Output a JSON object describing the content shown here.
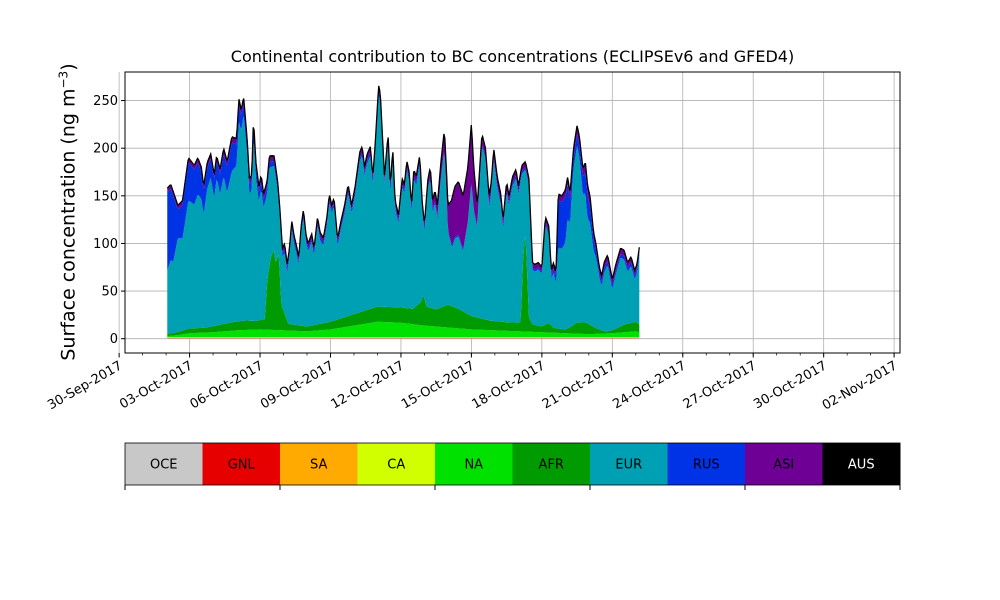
{
  "chart_data": {
    "type": "area",
    "title": "Continental contribution to BC concentrations (ECLIPSEv6 and GFED4)",
    "ylabel": "Surface concentration (ng m",
    "ylabel_exp": "−3",
    "ylabel_close": ")",
    "xlabel": "",
    "grid": true,
    "stacked": true,
    "start_date": "2017-10-01",
    "xlim": [
      "2017-09-30T06:00",
      "2017-11-02T06:00"
    ],
    "ylim": [
      -15,
      280
    ],
    "yticks": [
      0,
      50,
      100,
      150,
      200,
      250
    ],
    "xticks": [
      "2017-09-30",
      "2017-10-03",
      "2017-10-06",
      "2017-10-09",
      "2017-10-12",
      "2017-10-15",
      "2017-10-18",
      "2017-10-21",
      "2017-10-24",
      "2017-10-27",
      "2017-10-30",
      "2017-11-02"
    ],
    "xtick_labels": [
      "30-Sep-2017",
      "03-Oct-2017",
      "06-Oct-2017",
      "09-Oct-2017",
      "12-Oct-2017",
      "15-Oct-2017",
      "18-Oct-2017",
      "21-Oct-2017",
      "24-Oct-2017",
      "27-Oct-2017",
      "30-Oct-2017",
      "02-Nov-2017"
    ],
    "legend_placement": "colorbar below chart",
    "regions": [
      {
        "name": "OCE",
        "color": "#c8c8c8"
      },
      {
        "name": "GNL",
        "color": "#e60000"
      },
      {
        "name": "SA",
        "color": "#ffaa00"
      },
      {
        "name": "CA",
        "color": "#d2ff00"
      },
      {
        "name": "NA",
        "color": "#00e100"
      },
      {
        "name": "AFR",
        "color": "#009b00"
      },
      {
        "name": "EUR",
        "color": "#00a0b4"
      },
      {
        "name": "RUS",
        "color": "#0032e6"
      },
      {
        "name": "ASI",
        "color": "#6e0096"
      },
      {
        "name": "AUS",
        "color": "#000000"
      }
    ],
    "profiles": {
      "total": [
        [
          1.05,
          158
        ],
        [
          1.2,
          162
        ],
        [
          1.5,
          140
        ],
        [
          1.7,
          145
        ],
        [
          1.95,
          190
        ],
        [
          2.2,
          182
        ],
        [
          2.35,
          190
        ],
        [
          2.5,
          180
        ],
        [
          2.6,
          160
        ],
        [
          2.75,
          185
        ],
        [
          2.9,
          194
        ],
        [
          3.05,
          172
        ],
        [
          3.15,
          192
        ],
        [
          3.3,
          178
        ],
        [
          3.45,
          200
        ],
        [
          3.6,
          186
        ],
        [
          3.8,
          212
        ],
        [
          4.0,
          210
        ],
        [
          4.1,
          252
        ],
        [
          4.2,
          240
        ],
        [
          4.3,
          254
        ],
        [
          4.45,
          210
        ],
        [
          4.55,
          168
        ],
        [
          4.65,
          172
        ],
        [
          4.72,
          232
        ],
        [
          4.82,
          186
        ],
        [
          4.95,
          160
        ],
        [
          5.05,
          172
        ],
        [
          5.15,
          152
        ],
        [
          5.3,
          165
        ],
        [
          5.4,
          192
        ],
        [
          5.6,
          192
        ],
        [
          5.75,
          165
        ],
        [
          5.85,
          135
        ],
        [
          5.95,
          95
        ],
        [
          6.05,
          100
        ],
        [
          6.15,
          78
        ],
        [
          6.25,
          94
        ],
        [
          6.35,
          124
        ],
        [
          6.45,
          108
        ],
        [
          6.55,
          98
        ],
        [
          6.65,
          85
        ],
        [
          6.75,
          118
        ],
        [
          6.85,
          136
        ],
        [
          6.95,
          110
        ],
        [
          7.05,
          100
        ],
        [
          7.2,
          110
        ],
        [
          7.3,
          95
        ],
        [
          7.45,
          128
        ],
        [
          7.55,
          112
        ],
        [
          7.7,
          106
        ],
        [
          7.85,
          128
        ],
        [
          7.95,
          152
        ],
        [
          8.05,
          140
        ],
        [
          8.15,
          148
        ],
        [
          8.3,
          105
        ],
        [
          8.45,
          124
        ],
        [
          8.6,
          140
        ],
        [
          8.75,
          162
        ],
        [
          8.9,
          140
        ],
        [
          9.05,
          160
        ],
        [
          9.25,
          196
        ],
        [
          9.35,
          202
        ],
        [
          9.45,
          180
        ],
        [
          9.55,
          193
        ],
        [
          9.7,
          202
        ],
        [
          9.8,
          170
        ],
        [
          9.9,
          203
        ],
        [
          10.05,
          266
        ],
        [
          10.12,
          258
        ],
        [
          10.3,
          170
        ],
        [
          10.45,
          215
        ],
        [
          10.55,
          160
        ],
        [
          10.65,
          200
        ],
        [
          10.75,
          145
        ],
        [
          10.9,
          130
        ],
        [
          11.05,
          168
        ],
        [
          11.15,
          162
        ],
        [
          11.25,
          187
        ],
        [
          11.35,
          175
        ],
        [
          11.45,
          140
        ],
        [
          11.55,
          178
        ],
        [
          11.65,
          170
        ],
        [
          11.8,
          193
        ],
        [
          11.9,
          145
        ],
        [
          12.0,
          120
        ],
        [
          12.15,
          168
        ],
        [
          12.25,
          180
        ],
        [
          12.35,
          145
        ],
        [
          12.45,
          156
        ],
        [
          12.55,
          140
        ],
        [
          12.7,
          185
        ],
        [
          12.85,
          220
        ],
        [
          12.95,
          170
        ],
        [
          13.0,
          140
        ],
        [
          13.15,
          145
        ],
        [
          13.3,
          160
        ],
        [
          13.45,
          165
        ],
        [
          13.65,
          150
        ],
        [
          13.85,
          180
        ],
        [
          14.0,
          226
        ],
        [
          14.1,
          180
        ],
        [
          14.25,
          140
        ],
        [
          14.45,
          215
        ],
        [
          14.6,
          200
        ],
        [
          14.75,
          150
        ],
        [
          14.85,
          165
        ],
        [
          14.95,
          200
        ],
        [
          15.1,
          170
        ],
        [
          15.25,
          152
        ],
        [
          15.35,
          125
        ],
        [
          15.5,
          165
        ],
        [
          15.6,
          150
        ],
        [
          15.75,
          170
        ],
        [
          15.9,
          178
        ],
        [
          16.0,
          160
        ],
        [
          16.15,
          182
        ],
        [
          16.3,
          186
        ],
        [
          16.45,
          168
        ],
        [
          16.6,
          80
        ],
        [
          16.7,
          78
        ],
        [
          16.85,
          80
        ],
        [
          17.0,
          75
        ],
        [
          17.15,
          128
        ],
        [
          17.3,
          118
        ],
        [
          17.4,
          72
        ],
        [
          17.5,
          80
        ],
        [
          17.6,
          68
        ],
        [
          17.7,
          152
        ],
        [
          17.85,
          150
        ],
        [
          18.0,
          156
        ],
        [
          18.1,
          170
        ],
        [
          18.2,
          152
        ],
        [
          18.35,
          200
        ],
        [
          18.5,
          224
        ],
        [
          18.6,
          212
        ],
        [
          18.75,
          178
        ],
        [
          18.85,
          186
        ],
        [
          18.95,
          160
        ],
        [
          19.05,
          150
        ],
        [
          19.2,
          112
        ],
        [
          19.3,
          100
        ],
        [
          19.45,
          75
        ],
        [
          19.55,
          66
        ],
        [
          19.65,
          80
        ],
        [
          19.8,
          88
        ],
        [
          20.0,
          62
        ],
        [
          20.15,
          78
        ],
        [
          20.35,
          95
        ],
        [
          20.5,
          93
        ],
        [
          20.65,
          80
        ],
        [
          20.8,
          86
        ],
        [
          20.95,
          72
        ],
        [
          21.05,
          78
        ],
        [
          21.15,
          96
        ]
      ],
      "afr": [
        [
          1.05,
          2
        ],
        [
          1.4,
          3
        ],
        [
          2.0,
          5
        ],
        [
          2.6,
          5
        ],
        [
          3.2,
          7
        ],
        [
          3.9,
          9
        ],
        [
          4.4,
          10
        ],
        [
          4.8,
          9
        ],
        [
          5.05,
          10
        ],
        [
          5.2,
          10
        ],
        [
          5.3,
          50
        ],
        [
          5.45,
          75
        ],
        [
          5.6,
          85
        ],
        [
          5.65,
          70
        ],
        [
          5.8,
          80
        ],
        [
          5.9,
          28
        ],
        [
          6.2,
          7
        ],
        [
          7.0,
          5
        ],
        [
          8.0,
          8
        ],
        [
          9.0,
          12
        ],
        [
          10.0,
          16
        ],
        [
          11.0,
          16
        ],
        [
          11.5,
          16
        ],
        [
          11.85,
          24
        ],
        [
          11.95,
          32
        ],
        [
          12.1,
          20
        ],
        [
          12.5,
          18
        ],
        [
          13.0,
          24
        ],
        [
          13.5,
          20
        ],
        [
          14.0,
          14
        ],
        [
          14.8,
          10
        ],
        [
          15.5,
          9
        ],
        [
          16.0,
          9
        ],
        [
          16.1,
          10
        ],
        [
          16.2,
          75
        ],
        [
          16.3,
          105
        ],
        [
          16.45,
          15
        ],
        [
          16.6,
          8
        ],
        [
          17.0,
          6
        ],
        [
          17.3,
          10
        ],
        [
          17.5,
          5
        ],
        [
          18.0,
          4
        ],
        [
          18.3,
          8
        ],
        [
          18.5,
          12
        ],
        [
          18.9,
          12
        ],
        [
          19.3,
          6
        ],
        [
          19.7,
          2
        ],
        [
          20.0,
          3
        ],
        [
          20.5,
          8
        ],
        [
          21.0,
          10
        ],
        [
          21.15,
          8
        ]
      ],
      "na": [
        [
          1.05,
          1
        ],
        [
          1.5,
          2
        ],
        [
          2.0,
          4
        ],
        [
          3.0,
          5
        ],
        [
          4.0,
          7
        ],
        [
          5.0,
          8
        ],
        [
          6.0,
          7
        ],
        [
          7.0,
          6
        ],
        [
          8.0,
          8
        ],
        [
          9.0,
          12
        ],
        [
          10.0,
          16
        ],
        [
          11.0,
          15
        ],
        [
          12.0,
          12
        ],
        [
          13.0,
          10
        ],
        [
          14.0,
          8
        ],
        [
          15.0,
          7
        ],
        [
          16.0,
          6
        ],
        [
          17.0,
          5
        ],
        [
          18.0,
          4
        ],
        [
          19.0,
          3
        ],
        [
          20.0,
          4
        ],
        [
          21.0,
          6
        ],
        [
          21.15,
          5
        ]
      ],
      "rus": [
        [
          1.05,
          82
        ],
        [
          1.3,
          70
        ],
        [
          1.5,
          30
        ],
        [
          1.7,
          35
        ],
        [
          1.95,
          40
        ],
        [
          2.3,
          35
        ],
        [
          2.6,
          25
        ],
        [
          2.9,
          20
        ],
        [
          3.2,
          18
        ],
        [
          3.5,
          25
        ],
        [
          3.8,
          30
        ],
        [
          4.1,
          18
        ],
        [
          4.4,
          10
        ],
        [
          4.8,
          10
        ],
        [
          5.2,
          8
        ],
        [
          5.6,
          5
        ],
        [
          6.0,
          4
        ],
        [
          7.0,
          3
        ],
        [
          8.0,
          3
        ],
        [
          9.0,
          3
        ],
        [
          10.0,
          4
        ],
        [
          11.0,
          3
        ],
        [
          12.0,
          3
        ],
        [
          13.0,
          2
        ],
        [
          14.0,
          2
        ],
        [
          15.0,
          3
        ],
        [
          16.0,
          3
        ],
        [
          16.5,
          2
        ],
        [
          17.0,
          2
        ],
        [
          17.6,
          5
        ],
        [
          17.7,
          50
        ],
        [
          18.0,
          48
        ],
        [
          18.3,
          12
        ],
        [
          18.6,
          12
        ],
        [
          18.9,
          25
        ],
        [
          19.1,
          15
        ],
        [
          19.4,
          5
        ],
        [
          20.0,
          4
        ],
        [
          21.15,
          4
        ]
      ],
      "asi": [
        [
          1.05,
          3
        ],
        [
          3.0,
          4
        ],
        [
          4.0,
          5
        ],
        [
          5.0,
          5
        ],
        [
          6.0,
          4
        ],
        [
          8.0,
          4
        ],
        [
          10.0,
          5
        ],
        [
          11.0,
          5
        ],
        [
          12.0,
          5
        ],
        [
          12.5,
          10
        ],
        [
          12.9,
          20
        ],
        [
          13.0,
          25
        ],
        [
          13.2,
          50
        ],
        [
          13.5,
          55
        ],
        [
          13.8,
          55
        ],
        [
          14.0,
          60
        ],
        [
          14.15,
          35
        ],
        [
          14.3,
          15
        ],
        [
          14.5,
          8
        ],
        [
          15.0,
          8
        ],
        [
          15.5,
          6
        ],
        [
          16.0,
          5
        ],
        [
          17.0,
          4
        ],
        [
          17.7,
          5
        ],
        [
          18.0,
          6
        ],
        [
          18.4,
          8
        ],
        [
          18.8,
          8
        ],
        [
          19.0,
          10
        ],
        [
          19.3,
          5
        ],
        [
          20.0,
          5
        ],
        [
          21.15,
          4
        ]
      ]
    }
  }
}
